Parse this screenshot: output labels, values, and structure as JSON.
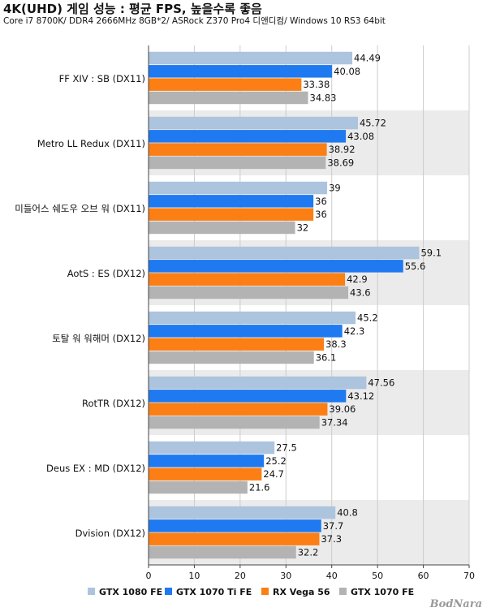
{
  "header": {
    "title": "4K(UHD) 게임 성능 : 평균 FPS, 높을수록 좋음",
    "subtitle": "Core i7 8700K/ DDR4 2666MHz 8GB*2/ ASRock Z370 Pro4 디앤디컴/ Windows 10 RS3 64bit"
  },
  "watermark": "BodNara",
  "chart_data": {
    "type": "bar",
    "orientation": "horizontal",
    "title": "4K(UHD) 게임 성능 : 평균 FPS, 높을수록 좋음",
    "subtitle": "Core i7 8700K/ DDR4 2666MHz 8GB*2/ ASRock Z370 Pro4 디앤디컴/ Windows 10 RS3 64bit",
    "xlabel": "",
    "ylabel": "",
    "xlim": [
      0,
      70
    ],
    "ticks": [
      0,
      10,
      20,
      30,
      40,
      50,
      60,
      70
    ],
    "grid": true,
    "legend_position": "bottom",
    "categories": [
      "FF XIV : SB (DX11)",
      "Metro LL Redux (DX11)",
      "미들어스 쉐도우 오브 워 (DX11)",
      "AotS : ES (DX12)",
      "토탈 워 워해머 (DX12)",
      "RotTR (DX12)",
      "Deus EX : MD (DX12)",
      "Dvision (DX12)"
    ],
    "series": [
      {
        "name": "GTX 1080 FE",
        "color": "#adc4de",
        "values": [
          44.49,
          45.72,
          39,
          59.1,
          45.2,
          47.56,
          27.5,
          40.8
        ],
        "labels": [
          "44.49",
          "45.72",
          "39",
          "59.1",
          "45.2",
          "47.56",
          "27.5",
          "40.8"
        ]
      },
      {
        "name": "GTX 1070 Ti FE",
        "color": "#1f79f0",
        "values": [
          40.08,
          43.08,
          36,
          55.6,
          42.3,
          43.12,
          25.2,
          37.7
        ],
        "labels": [
          "40.08",
          "43.08",
          "36",
          "55.6",
          "42.3",
          "43.12",
          "25.2",
          "37.7"
        ]
      },
      {
        "name": "RX Vega 56",
        "color": "#fb7f14",
        "values": [
          33.38,
          38.92,
          36,
          42.9,
          38.3,
          39.06,
          24.7,
          37.3
        ],
        "labels": [
          "33.38",
          "38.92",
          "36",
          "42.9",
          "38.3",
          "39.06",
          "24.7",
          "37.3"
        ]
      },
      {
        "name": "GTX 1070 FE",
        "color": "#b3b3b3",
        "values": [
          34.83,
          38.69,
          32,
          43.6,
          36.1,
          37.34,
          21.6,
          32.2
        ],
        "labels": [
          "34.83",
          "38.69",
          "32",
          "43.6",
          "36.1",
          "37.34",
          "21.6",
          "32.2"
        ]
      }
    ],
    "band_color": "#ebebeb",
    "grid_color": "#cccccc"
  }
}
